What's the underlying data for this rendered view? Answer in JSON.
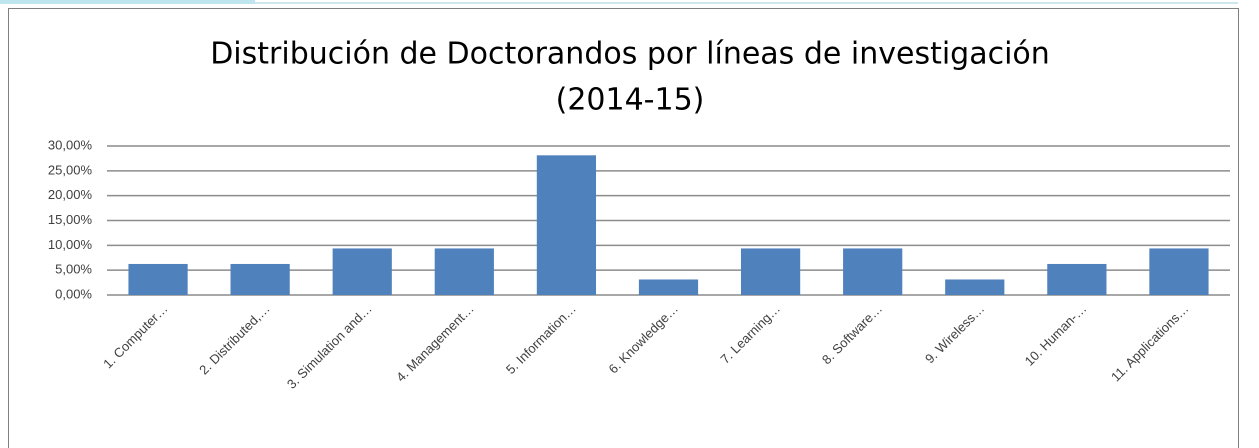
{
  "chart_data": {
    "type": "bar",
    "title": [
      "Distribución de Doctorandos por líneas de investigación",
      "(2014-15)"
    ],
    "categories": [
      "1. Computer…",
      "2. Distributed,…",
      "3. Simulation and…",
      "4. Management…",
      "5. Information…",
      "6. Knowledge…",
      "7. Learning…",
      "8. Software…",
      "9. Wireless…",
      "10. Human-…",
      "11. Applications…"
    ],
    "values": [
      6.25,
      6.25,
      9.375,
      9.375,
      28.125,
      3.125,
      9.375,
      9.375,
      3.125,
      6.25,
      9.375
    ],
    "color": "#4f81bd",
    "ylim": [
      0,
      30
    ],
    "yticks": [
      {
        "value": 0,
        "label": "0,00%"
      },
      {
        "value": 5,
        "label": "5,00%"
      },
      {
        "value": 10,
        "label": "10,00%"
      },
      {
        "value": 15,
        "label": "15,00%"
      },
      {
        "value": 20,
        "label": "20,00%"
      },
      {
        "value": 25,
        "label": "25,00%"
      },
      {
        "value": 30,
        "label": "30,00%"
      }
    ],
    "grid": true
  }
}
